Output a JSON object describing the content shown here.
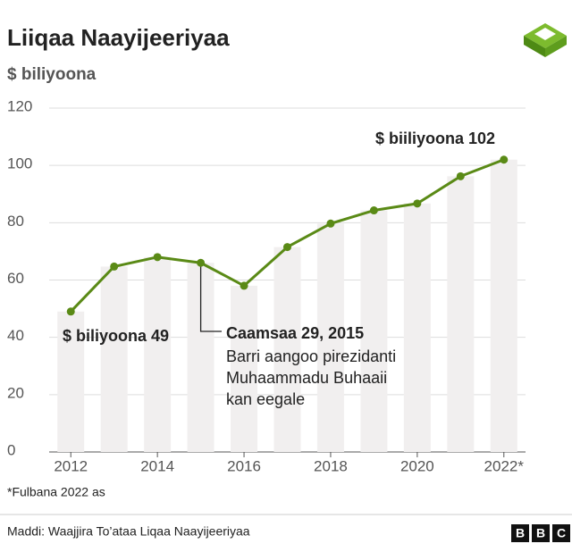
{
  "chart_data": {
    "type": "line",
    "title": "Liiqaa Naayijeeriyaa",
    "subtitle": "$ biliyoona",
    "x": [
      2012,
      2013,
      2014,
      2015,
      2016,
      2017,
      2018,
      2019,
      2020,
      2021,
      2022
    ],
    "series": [
      {
        "color": "#5a8a16",
        "values": [
          49,
          64.7,
          68,
          66,
          58,
          71.5,
          79.7,
          84.3,
          86.7,
          96.2,
          102
        ]
      }
    ],
    "bar_color": "#f1efef",
    "xlim": [
      2011.5,
      2022.5
    ],
    "xticks": [
      2012,
      2014,
      2016,
      2018,
      2020,
      {
        "value": 2022,
        "label": "2022*"
      }
    ],
    "ylim": [
      0,
      120
    ],
    "yticks": [
      0,
      20,
      40,
      60,
      80,
      100,
      120
    ],
    "grid": true,
    "annotations": [
      "$ biliyoona 49",
      "$ biiliyoona 102",
      "Caamsaa 29, 2015",
      "Barri aangoo pirezidanti",
      "Muhaammadu Buhaaii",
      "kan eegale"
    ],
    "footnote": "*Fulbana 2022 as",
    "source": "Maddi: Waajjira To’ataa Liqaa Naayijeeriyaa",
    "logo": [
      "B",
      "B",
      "C"
    ]
  }
}
